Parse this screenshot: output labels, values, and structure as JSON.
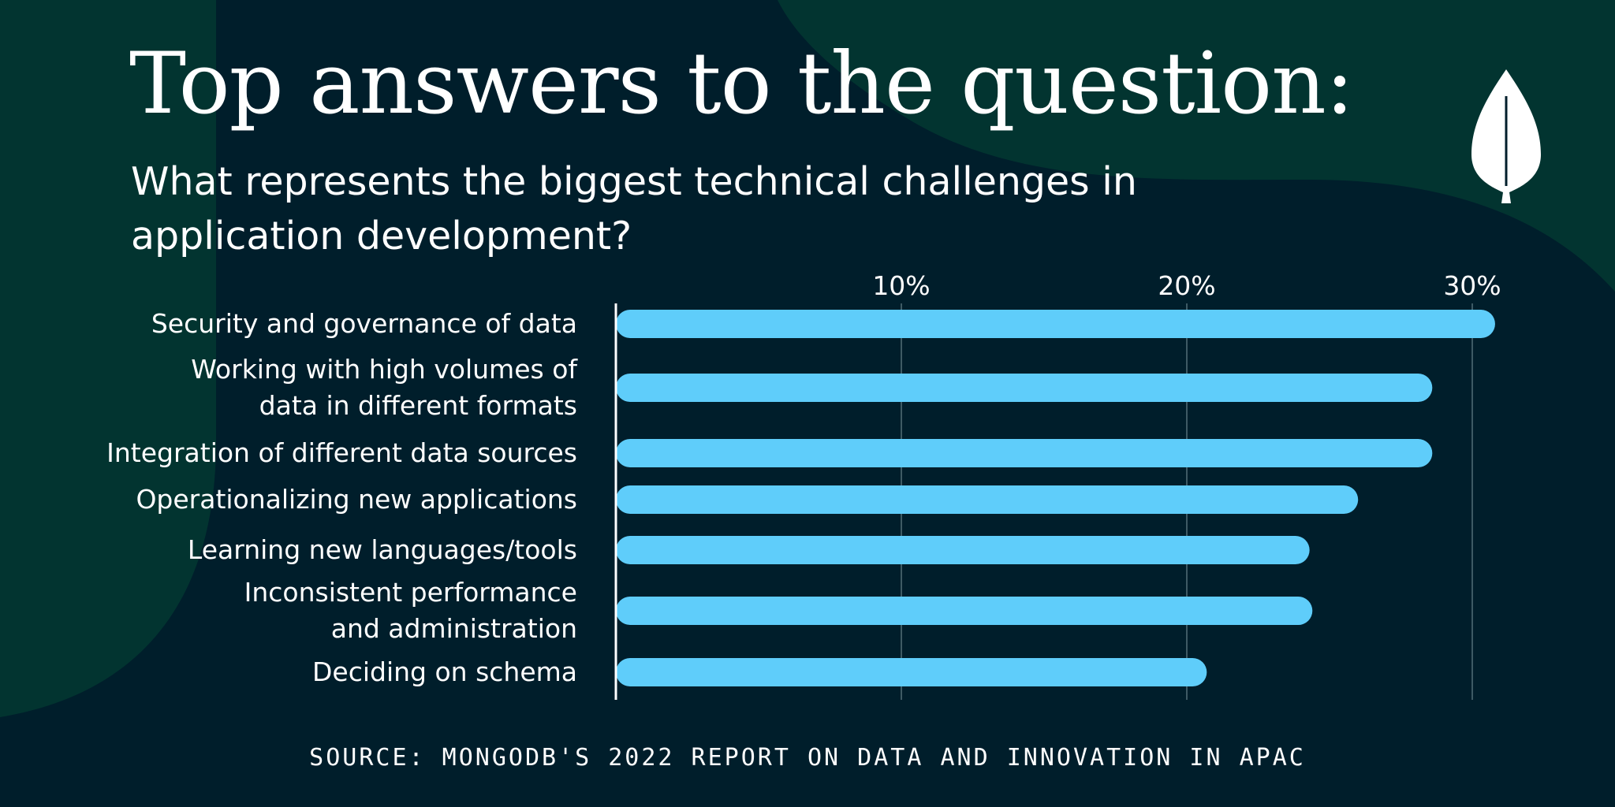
{
  "colors": {
    "background": "#001e2b",
    "blob": "#023430",
    "bar": "#5fcdfa",
    "gridline": "#3e5a64",
    "text": "#ffffff"
  },
  "icons": {
    "logo": "mongodb-leaf-icon"
  },
  "header": {
    "title": "Top answers to the question:",
    "subtitle": "What represents the biggest technical challenges in application development?"
  },
  "chart_data": {
    "type": "bar",
    "orientation": "horizontal",
    "categories": [
      [
        "Security and governance of data"
      ],
      [
        "Working with high volumes of",
        "data in different formats"
      ],
      [
        "Integration of different data sources"
      ],
      [
        "Operationalizing new applications"
      ],
      [
        "Learning new languages/tools"
      ],
      [
        "Inconsistent performance",
        "and administration"
      ],
      [
        "Deciding on schema"
      ]
    ],
    "values": [
      30.8,
      28.6,
      28.6,
      26.0,
      24.3,
      24.4,
      20.7
    ],
    "xticks": [
      10,
      20,
      30
    ],
    "xtick_labels": [
      "10%",
      "20%",
      "30%"
    ],
    "xlim": [
      0,
      30
    ],
    "grid": true,
    "unit": "%"
  },
  "footer": {
    "source": "SOURCE: MONGODB'S 2022 REPORT ON DATA AND INNOVATION IN APAC"
  }
}
